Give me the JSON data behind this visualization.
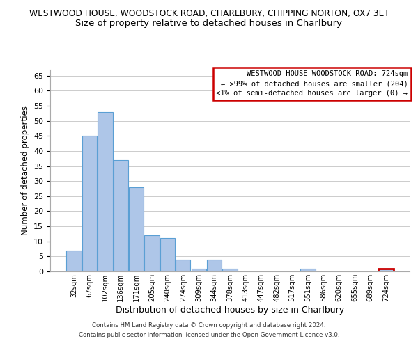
{
  "title": "WESTWOOD HOUSE, WOODSTOCK ROAD, CHARLBURY, CHIPPING NORTON, OX7 3ET",
  "subtitle": "Size of property relative to detached houses in Charlbury",
  "xlabel": "Distribution of detached houses by size in Charlbury",
  "ylabel": "Number of detached properties",
  "bar_labels": [
    "32sqm",
    "67sqm",
    "102sqm",
    "136sqm",
    "171sqm",
    "205sqm",
    "240sqm",
    "274sqm",
    "309sqm",
    "344sqm",
    "378sqm",
    "413sqm",
    "447sqm",
    "482sqm",
    "517sqm",
    "551sqm",
    "586sqm",
    "620sqm",
    "655sqm",
    "689sqm",
    "724sqm"
  ],
  "bar_values": [
    7,
    45,
    53,
    37,
    28,
    12,
    11,
    4,
    1,
    4,
    1,
    0,
    0,
    0,
    0,
    1,
    0,
    0,
    0,
    0,
    1
  ],
  "bar_color": "#aec6e8",
  "bar_edge_color": "#5a9fd4",
  "highlight_index": 20,
  "highlight_edge_color": "#cc0000",
  "ylim": [
    0,
    67
  ],
  "yticks": [
    0,
    5,
    10,
    15,
    20,
    25,
    30,
    35,
    40,
    45,
    50,
    55,
    60,
    65
  ],
  "legend_title": "WESTWOOD HOUSE WOODSTOCK ROAD: 724sqm",
  "legend_line1": "← >99% of detached houses are smaller (204)",
  "legend_line2": "<1% of semi-detached houses are larger (0) →",
  "legend_box_color": "#ffffff",
  "legend_box_edge_color": "#cc0000",
  "footnote1": "Contains HM Land Registry data © Crown copyright and database right 2024.",
  "footnote2": "Contains public sector information licensed under the Open Government Licence v3.0.",
  "background_color": "#ffffff",
  "grid_color": "#cccccc"
}
